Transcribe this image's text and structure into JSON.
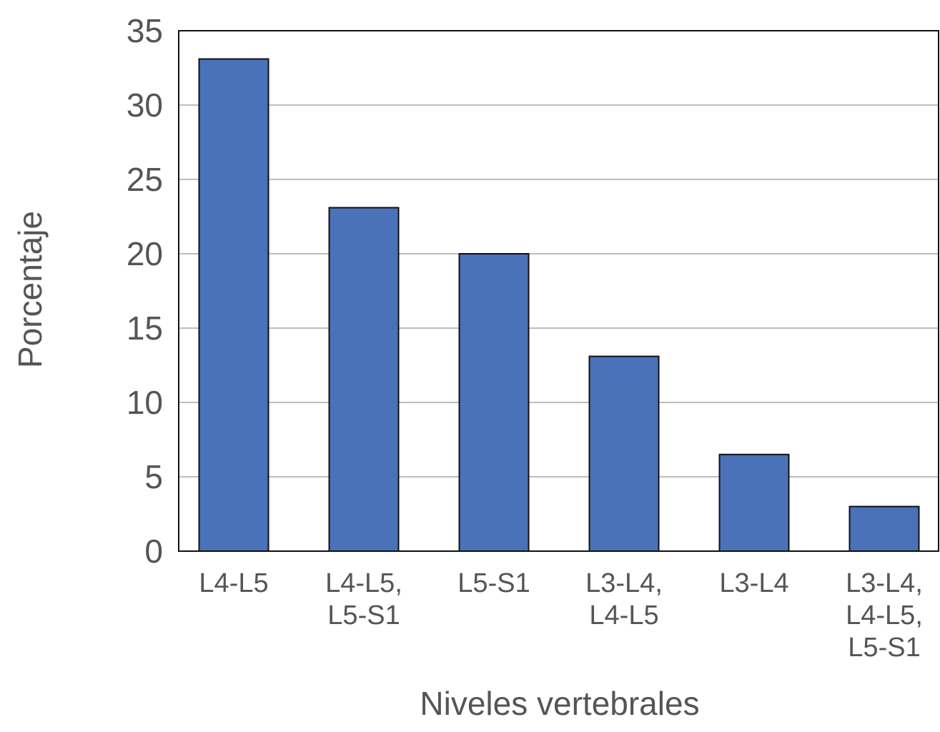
{
  "chart_data": {
    "type": "bar",
    "title": "",
    "xlabel": "Niveles vertebrales",
    "ylabel": "Porcentaje",
    "ylim": [
      0,
      35
    ],
    "yticks": [
      0,
      5,
      10,
      15,
      20,
      25,
      30,
      35
    ],
    "grid": true,
    "categories": [
      [
        "L4-L5"
      ],
      [
        "L4-L5,",
        "L5-S1"
      ],
      [
        "L5-S1"
      ],
      [
        "L3-L4,",
        "L4-L5"
      ],
      [
        "L3-L4"
      ],
      [
        "L3-L4,",
        "L4-L5,",
        "L5-S1"
      ]
    ],
    "values": [
      33.1,
      23.1,
      20.0,
      13.1,
      6.5,
      3.0
    ],
    "colors": {
      "bar": "#4a72b8",
      "bar_edge": "#111111",
      "grid": "#bdbdbd",
      "text": "#555555"
    }
  }
}
